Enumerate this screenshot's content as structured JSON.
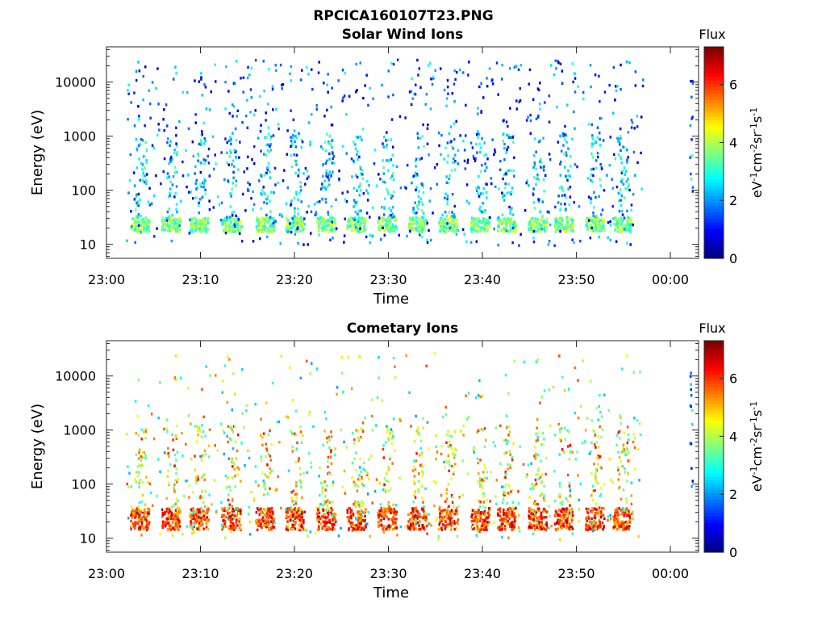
{
  "figure": {
    "title": "RPCICA160107T23.PNG"
  },
  "chart_data": [
    {
      "type": "heatmap",
      "title": "Solar Wind Ions",
      "xlabel": "Time",
      "ylabel": "Energy (eV)",
      "x_ticks": [
        "23:00",
        "23:10",
        "23:20",
        "23:30",
        "23:40",
        "23:50",
        "00:00"
      ],
      "x_range_minutes": [
        0,
        63
      ],
      "y_scale": "log",
      "y_ticks": [
        "10",
        "100",
        "1000",
        "10000"
      ],
      "y_range": [
        5.5,
        45000
      ],
      "colorbar": {
        "label_top": "Flux",
        "units": "eV-1cm-2sr-1s-1",
        "ticks": [
          "0",
          "2",
          "4",
          "6"
        ],
        "range": [
          0,
          7.3
        ],
        "colormap": "jet"
      },
      "data_extent_minutes": [
        2,
        57
      ],
      "sparse_column_minute": 62,
      "low_energy_bursts": {
        "minutes": [
          3.5,
          6.8,
          9.8,
          13.2,
          16.8,
          20.0,
          23.3,
          26.5,
          29.8,
          33.0,
          36.3,
          39.7,
          42.5,
          45.8,
          48.6,
          51.9,
          54.8
        ],
        "energy_eV": [
          18,
          33
        ],
        "flux": 3.8
      },
      "flux_typical_range": [
        1.5,
        3.5
      ]
    },
    {
      "type": "heatmap",
      "title": "Cometary Ions",
      "xlabel": "Time",
      "ylabel": "Energy (eV)",
      "x_ticks": [
        "23:00",
        "23:10",
        "23:20",
        "23:30",
        "23:40",
        "23:50",
        "00:00"
      ],
      "x_range_minutes": [
        0,
        63
      ],
      "y_scale": "log",
      "y_ticks": [
        "10",
        "100",
        "1000",
        "10000"
      ],
      "y_range": [
        5.5,
        45000
      ],
      "colorbar": {
        "label_top": "Flux",
        "units": "eV-1cm-2sr-1s-1",
        "ticks": [
          "0",
          "2",
          "4",
          "6"
        ],
        "range": [
          0,
          7.3
        ],
        "colormap": "jet"
      },
      "data_extent_minutes": [
        2,
        57
      ],
      "sparse_column_minute": 62,
      "low_energy_bursts": {
        "minutes": [
          3.5,
          6.8,
          9.8,
          13.2,
          16.8,
          20.0,
          23.3,
          26.5,
          29.8,
          33.0,
          36.3,
          39.7,
          42.5,
          45.8,
          48.6,
          51.9,
          54.8
        ],
        "energy_eV": [
          15,
          38
        ],
        "flux": 6.2
      },
      "flux_typical_range": [
        3.0,
        6.5
      ]
    }
  ]
}
